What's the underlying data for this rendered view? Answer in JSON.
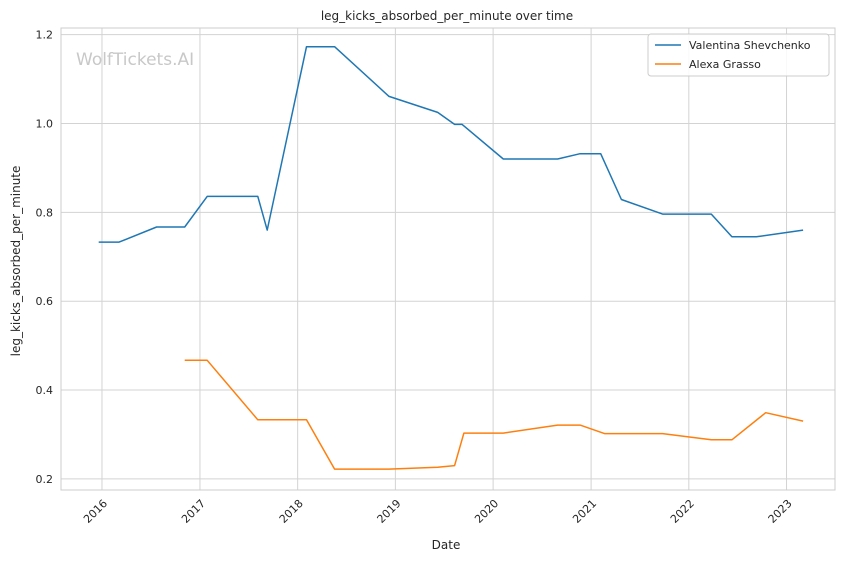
{
  "watermark": "WolfTickets.AI",
  "colors": {
    "series_0": "#1f77b4",
    "series_1": "#ff7f0e",
    "grid": "#d3d3d3",
    "frame": "#cccccc"
  },
  "chart_data": {
    "type": "line",
    "title": "leg_kicks_absorbed_per_minute over time",
    "xlabel": "Date",
    "ylabel": "leg_kicks_absorbed_per_minute",
    "x_ticks": [
      "2016",
      "2017",
      "2018",
      "2019",
      "2020",
      "2021",
      "2022",
      "2023"
    ],
    "y_ticks": [
      "0.2",
      "0.4",
      "0.6",
      "0.8",
      "1.0",
      "1.2"
    ],
    "xlim": [
      "2015-08-01",
      "2023-07-01"
    ],
    "ylim": [
      0.175,
      1.215
    ],
    "grid": true,
    "legend_position": "top-right",
    "series": [
      {
        "name": "Valentina Shevchenko",
        "points": [
          [
            "2015-12-20",
            0.733
          ],
          [
            "2016-03-05",
            0.733
          ],
          [
            "2016-07-23",
            0.767
          ],
          [
            "2016-11-05",
            0.767
          ],
          [
            "2017-01-28",
            0.836
          ],
          [
            "2017-08-05",
            0.836
          ],
          [
            "2017-09-09",
            0.76
          ],
          [
            "2018-02-03",
            1.173
          ],
          [
            "2018-05-19",
            1.173
          ],
          [
            "2018-12-08",
            1.061
          ],
          [
            "2019-06-08",
            1.025
          ],
          [
            "2019-08-10",
            0.998
          ],
          [
            "2019-09-07",
            0.998
          ],
          [
            "2020-02-08",
            0.92
          ],
          [
            "2020-08-29",
            0.92
          ],
          [
            "2020-11-21",
            0.932
          ],
          [
            "2021-02-06",
            0.932
          ],
          [
            "2021-04-24",
            0.829
          ],
          [
            "2021-09-25",
            0.796
          ],
          [
            "2022-03-26",
            0.796
          ],
          [
            "2022-06-11",
            0.745
          ],
          [
            "2022-09-10",
            0.745
          ],
          [
            "2023-03-04",
            0.76
          ]
        ]
      },
      {
        "name": "Alexa Grasso",
        "points": [
          [
            "2016-11-05",
            0.467
          ],
          [
            "2017-01-28",
            0.467
          ],
          [
            "2017-08-05",
            0.333
          ],
          [
            "2018-02-03",
            0.333
          ],
          [
            "2018-05-19",
            0.222
          ],
          [
            "2018-12-08",
            0.222
          ],
          [
            "2019-06-08",
            0.226
          ],
          [
            "2019-08-10",
            0.23
          ],
          [
            "2019-09-14",
            0.303
          ],
          [
            "2020-02-08",
            0.303
          ],
          [
            "2020-08-29",
            0.321
          ],
          [
            "2020-11-21",
            0.321
          ],
          [
            "2021-02-20",
            0.302
          ],
          [
            "2021-09-25",
            0.302
          ],
          [
            "2022-03-26",
            0.288
          ],
          [
            "2022-06-11",
            0.288
          ],
          [
            "2022-10-15",
            0.349
          ],
          [
            "2023-03-04",
            0.33
          ]
        ]
      }
    ]
  }
}
